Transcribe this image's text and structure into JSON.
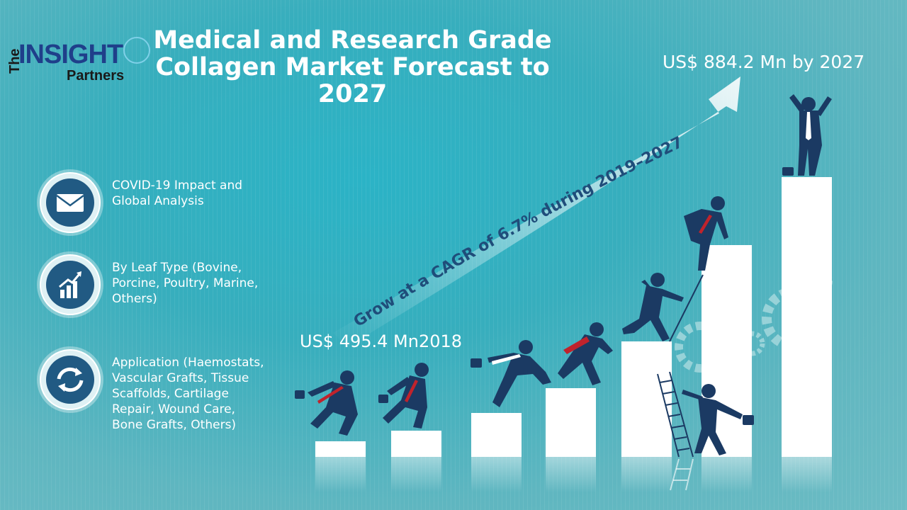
{
  "logo": {
    "the": "The",
    "insight": "INSIGHT",
    "partners": "Partners"
  },
  "title": "Medical and Research Grade Collagen Market Forecast to 2027",
  "start_label": "US$ 495.4 Mn2018",
  "end_label": "US$ 884.2 Mn by 2027",
  "cagr_text": "Grow at a CAGR of 6.7% during 2019–2027",
  "features": [
    {
      "icon": "envelope-icon",
      "text": "COVID-19 Impact and Global Analysis"
    },
    {
      "icon": "growth-chart-icon",
      "text": "By Leaf Type (Bovine, Porcine, Poultry, Marine, Others)"
    },
    {
      "icon": "cycle-arrows-icon",
      "text": "Application (Haemostats, Vascular Grafts, Tissue Scaffolds, Cartilage Repair, Wound Care, Bone Grafts, Others)"
    }
  ],
  "colors": {
    "navy": "#1b3a63",
    "tie": "#c0232c",
    "accent": "#215a83",
    "cagr": "#1f4d7a"
  }
}
